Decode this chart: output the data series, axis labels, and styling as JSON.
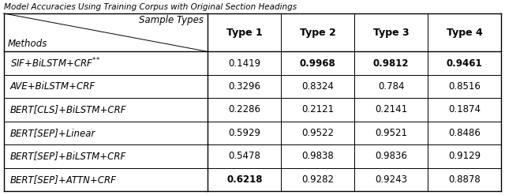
{
  "title": "Model Accuracies Using Training Corpus with Original Section Headings",
  "col_headers": [
    "Type 1",
    "Type 2",
    "Type 3",
    "Type 4"
  ],
  "rows": [
    {
      "method": "SIF+BiLSTM+CRF",
      "superscript": true,
      "values": [
        "0.1419",
        "0.9968",
        "0.9812",
        "0.9461"
      ],
      "bold": [
        false,
        true,
        true,
        true
      ]
    },
    {
      "method": "AVE+BiLSTM+CRF",
      "superscript": false,
      "values": [
        "0.3296",
        "0.8324",
        "0.784",
        "0.8516"
      ],
      "bold": [
        false,
        false,
        false,
        false
      ]
    },
    {
      "method": "BERT[CLS]+BiLSTM+CRF",
      "superscript": false,
      "values": [
        "0.2286",
        "0.2121",
        "0.2141",
        "0.1874"
      ],
      "bold": [
        false,
        false,
        false,
        false
      ]
    },
    {
      "method": "BERT[SEP]+Linear",
      "superscript": false,
      "values": [
        "0.5929",
        "0.9522",
        "0.9521",
        "0.8486"
      ],
      "bold": [
        false,
        false,
        false,
        false
      ]
    },
    {
      "method": "BERT[SEP]+BiLSTM+CRF",
      "superscript": false,
      "values": [
        "0.5478",
        "0.9838",
        "0.9836",
        "0.9129"
      ],
      "bold": [
        false,
        false,
        false,
        false
      ]
    },
    {
      "method": "BERT[SEP]+ATTN+CRF",
      "superscript": false,
      "values": [
        "0.6218",
        "0.9282",
        "0.9243",
        "0.8878"
      ],
      "bold": [
        true,
        false,
        false,
        false
      ]
    }
  ],
  "bg_color": "#ffffff",
  "border_color": "#000000",
  "text_color": "#000000",
  "fontsize": 8.5,
  "title_fontsize": 7.5,
  "header_fontsize": 9.0
}
